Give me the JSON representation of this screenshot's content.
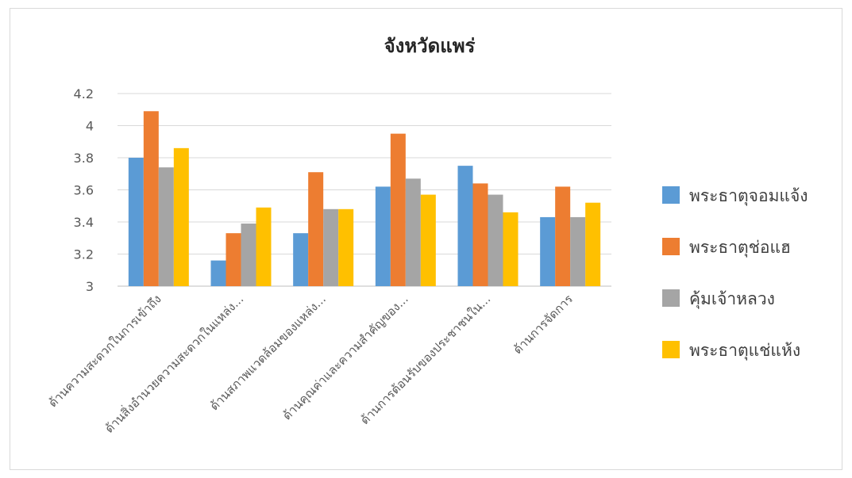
{
  "chart_data": {
    "type": "bar",
    "title": "จังหวัดแพร่",
    "categories": [
      "ด้านความสะดวกในการเข้าถึง",
      "ด้านสิ่งอำนวยความสะดวกในแหล่ง...",
      "ด้านสภาพแวดล้อมของแหล่ง...",
      "ด้านคุณค่าและความสำคัญของ...",
      "ด้านการต้อนรับของประชาชนใน...",
      "ด้านการจัดการ"
    ],
    "series": [
      {
        "name": "พระธาตุจอมแจ้ง",
        "color": "#5B9BD5",
        "values": [
          3.8,
          3.16,
          3.33,
          3.62,
          3.75,
          3.43
        ]
      },
      {
        "name": "พระธาตุช่อแฮ",
        "color": "#ED7D31",
        "values": [
          4.09,
          3.33,
          3.71,
          3.95,
          3.64,
          3.62
        ]
      },
      {
        "name": "คุ้มเจ้าหลวง",
        "color": "#A5A5A5",
        "values": [
          3.74,
          3.39,
          3.48,
          3.67,
          3.57,
          3.43
        ]
      },
      {
        "name": "พระธาตุแช่แห้ง",
        "color": "#FFC000",
        "values": [
          3.86,
          3.49,
          3.48,
          3.57,
          3.46,
          3.52
        ]
      }
    ],
    "ylim": [
      3,
      4.2
    ],
    "yticks": [
      "3",
      "3.2",
      "3.4",
      "3.6",
      "3.8",
      "4",
      "4.2"
    ],
    "grid": true,
    "legend_position": "right"
  }
}
